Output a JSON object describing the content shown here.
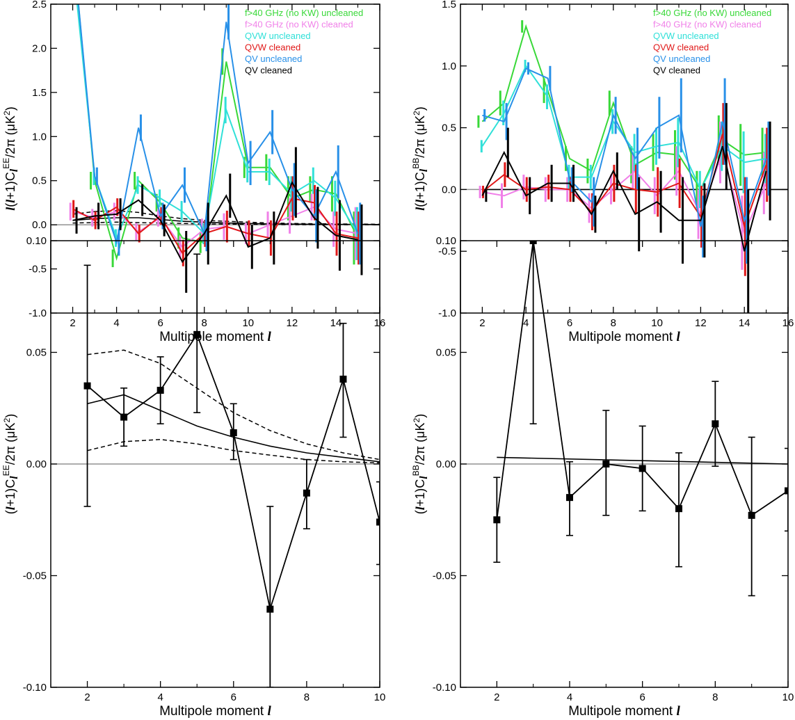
{
  "figure": {
    "xlabel_main": "Multipole moment ",
    "xlabel_ell": "l",
    "ylabel_ee": "(l+1)C",
    "ylabel_ee_sup": "EE",
    "ylabel_bb_sup": "BB",
    "ylabel_tail": "/2π (μK",
    "ylabel_tail_sup": "2",
    "ylabel_close": ")",
    "ylabel_lead_full": "l(l+1)C",
    "ell": "l"
  },
  "colors": {
    "green": "#38d838",
    "pink": "#f080e8",
    "cyan": "#30e0d8",
    "red": "#e01818",
    "blue": "#2890e8",
    "black": "#000000",
    "zero": "#909090"
  },
  "chart_data": [
    {
      "id": "top-left",
      "type": "line",
      "title": "",
      "xlabel": "Multipole moment l",
      "ylabel": "l(l+1)C_l^EE/2π (μK^2)",
      "xlim": [
        1,
        16
      ],
      "ylim": [
        -1.0,
        2.5
      ],
      "xticks": [
        2,
        4,
        6,
        8,
        10,
        12,
        14,
        16
      ],
      "yticks": [
        -1.0,
        -0.5,
        0.0,
        0.5,
        1.0,
        1.5,
        2.0,
        2.5
      ],
      "ytick_labels": [
        "-1.0",
        "-0.5",
        "0.0",
        "0.5",
        "1.0",
        "1.5",
        "2.0",
        "2.5"
      ],
      "legend_position": "top-right",
      "series": [
        {
          "name": "f>40 GHz (no KW) uncleaned",
          "color": "green",
          "x": [
            2,
            3,
            4,
            5,
            6,
            7,
            8,
            9,
            10,
            11,
            12,
            13,
            14,
            15
          ],
          "y": [
            3.2,
            0.5,
            -0.38,
            0.5,
            0.25,
            -0.15,
            -0.2,
            1.85,
            0.65,
            0.65,
            0.3,
            0.4,
            0.35,
            -0.15
          ],
          "err": [
            0.1,
            0.1,
            0.1,
            0.1,
            0.1,
            0.12,
            0.12,
            0.15,
            0.12,
            0.15,
            0.25,
            0.15,
            0.2,
            0.3
          ]
        },
        {
          "name": "f>40 GHz (no KW) cleaned",
          "color": "pink",
          "x": [
            2,
            3,
            4,
            5,
            6,
            7,
            8,
            9,
            10,
            11,
            12,
            13,
            14,
            15
          ],
          "y": [
            0.15,
            0.08,
            0.15,
            -0.08,
            0.08,
            -0.25,
            -0.05,
            -0.02,
            -0.1,
            0.0,
            0.1,
            0.2,
            -0.05,
            -0.1
          ],
          "err": [
            0.1,
            0.1,
            0.1,
            0.1,
            0.1,
            0.12,
            0.12,
            0.15,
            0.12,
            0.15,
            0.2,
            0.15,
            0.2,
            0.3
          ]
        },
        {
          "name": "QVW uncleaned",
          "color": "cyan",
          "x": [
            2,
            3,
            4,
            5,
            6,
            7,
            8,
            9,
            10,
            11,
            12,
            13,
            14,
            15
          ],
          "y": [
            3.0,
            0.55,
            -0.15,
            0.45,
            0.3,
            0.15,
            -0.1,
            1.3,
            0.6,
            0.6,
            0.35,
            0.5,
            0.3,
            -0.1
          ],
          "err": [
            0.1,
            0.1,
            0.1,
            0.1,
            0.1,
            0.12,
            0.12,
            0.15,
            0.12,
            0.15,
            0.2,
            0.15,
            0.2,
            0.3
          ]
        },
        {
          "name": "QVW cleaned",
          "color": "red",
          "x": [
            2,
            3,
            4,
            5,
            6,
            7,
            8,
            9,
            10,
            11,
            12,
            13,
            14,
            15
          ],
          "y": [
            0.18,
            0.05,
            0.2,
            -0.1,
            0.1,
            -0.32,
            -0.1,
            -0.02,
            -0.1,
            -0.15,
            0.3,
            0.25,
            -0.1,
            -0.15
          ],
          "err": [
            0.1,
            0.1,
            0.1,
            0.1,
            0.1,
            0.15,
            0.15,
            0.18,
            0.15,
            0.2,
            0.25,
            0.2,
            0.25,
            0.3
          ]
        },
        {
          "name": "QV uncleaned",
          "color": "blue",
          "x": [
            2,
            3,
            4,
            5,
            6,
            7,
            8,
            9,
            10,
            11,
            12,
            13,
            14,
            15
          ],
          "y": [
            3.2,
            0.55,
            -0.2,
            1.1,
            0.1,
            0.45,
            -0.1,
            2.3,
            0.7,
            1.05,
            0.4,
            0.1,
            0.6,
            -0.1
          ],
          "err": [
            0.1,
            0.1,
            0.15,
            0.15,
            0.15,
            0.2,
            0.2,
            0.2,
            0.25,
            0.25,
            0.3,
            0.3,
            0.3,
            0.35
          ]
        },
        {
          "name": "QV cleaned",
          "color": "black",
          "x": [
            2,
            3,
            4,
            5,
            6,
            7,
            8,
            9,
            10,
            11,
            12,
            13,
            14,
            15
          ],
          "y": [
            0.05,
            0.1,
            0.12,
            0.28,
            0.05,
            -0.42,
            -0.1,
            0.33,
            -0.25,
            -0.15,
            0.48,
            0.08,
            -0.12,
            -0.17
          ],
          "err": [
            0.15,
            0.15,
            0.18,
            0.18,
            0.18,
            0.35,
            0.35,
            0.25,
            0.25,
            0.3,
            0.4,
            0.35,
            0.4,
            0.4
          ]
        }
      ],
      "model": {
        "x": [
          2,
          3,
          4,
          5,
          6,
          7,
          8,
          9,
          10,
          11,
          12,
          13,
          14,
          15,
          16
        ],
        "y": [
          0.05,
          0.07,
          0.08,
          0.08,
          0.06,
          0.04,
          0.03,
          0.02,
          0.015,
          0.01,
          0.008,
          0.006,
          0.005,
          0.004,
          0.003
        ],
        "upper": [
          0.12,
          0.15,
          0.16,
          0.14,
          0.1,
          0.07,
          0.05,
          0.04,
          0.03,
          0.02,
          0.015,
          0.012,
          0.01,
          0.008,
          0.006
        ],
        "lower": [
          0.02,
          0.025,
          0.03,
          0.025,
          0.02,
          0.015,
          0.01,
          0.008,
          0.005,
          0.004,
          0.003,
          0.002,
          0.002,
          0.001,
          0.001
        ]
      }
    },
    {
      "id": "top-right",
      "type": "line",
      "title": "",
      "xlabel": "Multipole moment l",
      "ylabel": "l(l+1)C_l^BB/2π (μK^2)",
      "xlim": [
        1,
        16
      ],
      "ylim": [
        -1.0,
        1.5
      ],
      "xticks": [
        2,
        4,
        6,
        8,
        10,
        12,
        14,
        16
      ],
      "yticks": [
        -1.0,
        -0.5,
        0.0,
        0.5,
        1.0,
        1.5
      ],
      "ytick_labels": [
        "-1.0",
        "-0.5",
        "0.0",
        "0.5",
        "1.0",
        "1.5"
      ],
      "legend_position": "top-right",
      "series": [
        {
          "name": "f>40 GHz (no KW) uncleaned",
          "color": "green",
          "x": [
            2,
            3,
            4,
            5,
            6,
            7,
            8,
            9,
            10,
            11,
            12,
            13,
            14,
            15
          ],
          "y": [
            0.55,
            0.7,
            1.32,
            0.8,
            0.25,
            0.15,
            0.7,
            0.2,
            0.3,
            0.28,
            0.0,
            0.4,
            0.28,
            0.3
          ],
          "err": [
            0.05,
            0.1,
            0.05,
            0.1,
            0.1,
            0.1,
            0.1,
            0.15,
            0.15,
            0.2,
            0.15,
            0.2,
            0.25,
            0.2
          ]
        },
        {
          "name": "f>40 GHz (no KW) cleaned",
          "color": "pink",
          "x": [
            2,
            3,
            4,
            5,
            6,
            7,
            8,
            9,
            10,
            11,
            12,
            13,
            14,
            15
          ],
          "y": [
            -0.02,
            -0.05,
            0.02,
            0.0,
            0.0,
            -0.15,
            0.0,
            0.15,
            -0.05,
            0.15,
            -0.2,
            0.3,
            -0.35,
            0.05
          ],
          "err": [
            0.05,
            0.1,
            0.1,
            0.1,
            0.1,
            0.12,
            0.12,
            0.15,
            0.15,
            0.2,
            0.2,
            0.25,
            0.3,
            0.25
          ]
        },
        {
          "name": "QVW uncleaned",
          "color": "cyan",
          "x": [
            2,
            3,
            4,
            5,
            6,
            7,
            8,
            9,
            10,
            11,
            12,
            13,
            14,
            15
          ],
          "y": [
            0.35,
            0.62,
            1.0,
            0.75,
            0.1,
            0.1,
            0.55,
            0.3,
            0.35,
            0.38,
            0.0,
            0.35,
            0.22,
            0.25
          ],
          "err": [
            0.05,
            0.1,
            0.05,
            0.1,
            0.1,
            0.1,
            0.1,
            0.15,
            0.15,
            0.2,
            0.15,
            0.2,
            0.25,
            0.2
          ]
        },
        {
          "name": "QVW cleaned",
          "color": "red",
          "x": [
            2,
            3,
            4,
            5,
            6,
            7,
            8,
            9,
            10,
            11,
            12,
            13,
            14,
            15
          ],
          "y": [
            -0.02,
            0.12,
            0.0,
            0.02,
            0.0,
            -0.18,
            0.05,
            0.0,
            -0.02,
            0.05,
            -0.22,
            0.45,
            -0.3,
            0.2
          ],
          "err": [
            0.05,
            0.1,
            0.1,
            0.1,
            0.1,
            0.15,
            0.15,
            0.2,
            0.2,
            0.2,
            0.25,
            0.25,
            0.4,
            0.3
          ]
        },
        {
          "name": "QV uncleaned",
          "color": "blue",
          "x": [
            2,
            3,
            4,
            5,
            6,
            7,
            8,
            9,
            10,
            11,
            12,
            13,
            14,
            15
          ],
          "y": [
            0.6,
            0.55,
            0.98,
            0.9,
            0.08,
            -0.1,
            0.6,
            0.25,
            0.5,
            0.6,
            -0.3,
            0.55,
            -0.25,
            0.25
          ],
          "err": [
            0.05,
            0.15,
            0.05,
            0.1,
            0.1,
            0.2,
            0.15,
            0.25,
            0.25,
            0.3,
            0.25,
            0.35,
            0.35,
            0.3
          ]
        },
        {
          "name": "QV cleaned",
          "color": "black",
          "x": [
            2,
            3,
            4,
            5,
            6,
            7,
            8,
            9,
            10,
            11,
            12,
            13,
            14,
            15
          ],
          "y": [
            -0.05,
            0.3,
            -0.05,
            0.05,
            0.05,
            -0.2,
            0.15,
            -0.2,
            -0.1,
            -0.25,
            -0.25,
            0.35,
            -0.5,
            0.15
          ],
          "err": [
            0.05,
            0.2,
            0.15,
            0.15,
            0.15,
            0.15,
            0.15,
            0.3,
            0.25,
            0.35,
            0.3,
            0.35,
            0.5,
            0.4
          ]
        }
      ],
      "model": {
        "x": [
          2,
          16
        ],
        "y": [
          0.0,
          0.0
        ]
      }
    },
    {
      "id": "bottom-left",
      "type": "scatter",
      "title": "",
      "xlabel": "Multipole moment l",
      "ylabel": "(l+1)C_l^EE/2π (μK^2)",
      "xlim": [
        1,
        10
      ],
      "ylim": [
        -0.1,
        0.1
      ],
      "xticks": [
        2,
        4,
        6,
        8,
        10
      ],
      "yticks": [
        -0.1,
        -0.05,
        0.0,
        0.05,
        0.1
      ],
      "ytick_labels": [
        "-0.10",
        "-0.05",
        "0.00",
        "0.05",
        "0.10"
      ],
      "series": [
        {
          "name": "QV cleaned",
          "color": "black",
          "x": [
            2,
            3,
            4,
            5,
            6,
            7,
            8,
            9,
            10
          ],
          "y": [
            0.035,
            0.021,
            0.033,
            0.058,
            0.014,
            -0.065,
            -0.013,
            0.038,
            -0.026
          ],
          "lo": [
            -0.019,
            0.008,
            0.018,
            0.023,
            0.002,
            -0.1,
            -0.029,
            0.012,
            -0.045
          ],
          "hi": [
            0.089,
            0.034,
            0.048,
            0.094,
            0.027,
            -0.019,
            0.002,
            0.063,
            -0.008
          ]
        }
      ],
      "model": {
        "x": [
          2,
          3,
          4,
          5,
          6,
          7,
          8,
          9,
          10
        ],
        "y": [
          0.027,
          0.031,
          0.024,
          0.017,
          0.012,
          0.008,
          0.005,
          0.003,
          0.001
        ],
        "upper": [
          0.049,
          0.051,
          0.045,
          0.034,
          0.023,
          0.015,
          0.009,
          0.005,
          0.002
        ],
        "lower": [
          0.006,
          0.01,
          0.011,
          0.009,
          0.006,
          0.004,
          0.002,
          0.001,
          0.0005
        ]
      }
    },
    {
      "id": "bottom-right",
      "type": "scatter",
      "title": "",
      "xlabel": "Multipole moment l",
      "ylabel": "(l+1)C_l^BB/2π (μK^2)",
      "xlim": [
        1,
        10
      ],
      "ylim": [
        -0.1,
        0.1
      ],
      "xticks": [
        2,
        4,
        6,
        8,
        10
      ],
      "yticks": [
        -0.1,
        -0.05,
        0.0,
        0.05,
        0.1
      ],
      "ytick_labels": [
        "-0.10",
        "-0.05",
        "0.00",
        "0.05",
        "0.10"
      ],
      "series": [
        {
          "name": "QV cleaned",
          "color": "black",
          "x": [
            2,
            3,
            4,
            5,
            6,
            7,
            8,
            9,
            10
          ],
          "y": [
            -0.025,
            0.1,
            -0.015,
            0.0,
            -0.002,
            -0.02,
            0.018,
            -0.023,
            -0.012
          ],
          "lo": [
            -0.044,
            0.018,
            -0.032,
            -0.023,
            -0.021,
            -0.046,
            -0.001,
            -0.059,
            -0.03
          ],
          "hi": [
            -0.006,
            0.1,
            0.001,
            0.024,
            0.017,
            0.005,
            0.037,
            0.012,
            0.007
          ]
        }
      ],
      "model": {
        "x": [
          2,
          10
        ],
        "y": [
          0.003,
          0.0
        ]
      }
    }
  ]
}
